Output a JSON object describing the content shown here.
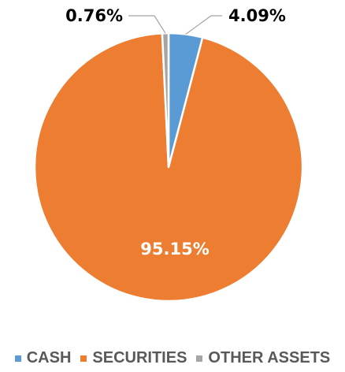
{
  "chart_data": {
    "type": "pie",
    "title": "",
    "categories": [
      "CASH",
      "SECURITIES",
      "OTHER ASSETS"
    ],
    "values": [
      4.09,
      95.15,
      0.76
    ],
    "value_labels": [
      "4.09%",
      "95.15%",
      "0.76%"
    ],
    "colors": [
      "#5B9BD5",
      "#ED7D31",
      "#A5A5A5"
    ],
    "start_angle_deg": 0,
    "direction": "clockwise",
    "legend_position": "bottom"
  },
  "legend": {
    "items": [
      {
        "label": "CASH",
        "color": "#5B9BD5"
      },
      {
        "label": "SECURITIES",
        "color": "#ED7D31"
      },
      {
        "label": "OTHER ASSETS",
        "color": "#A5A5A5"
      }
    ]
  }
}
